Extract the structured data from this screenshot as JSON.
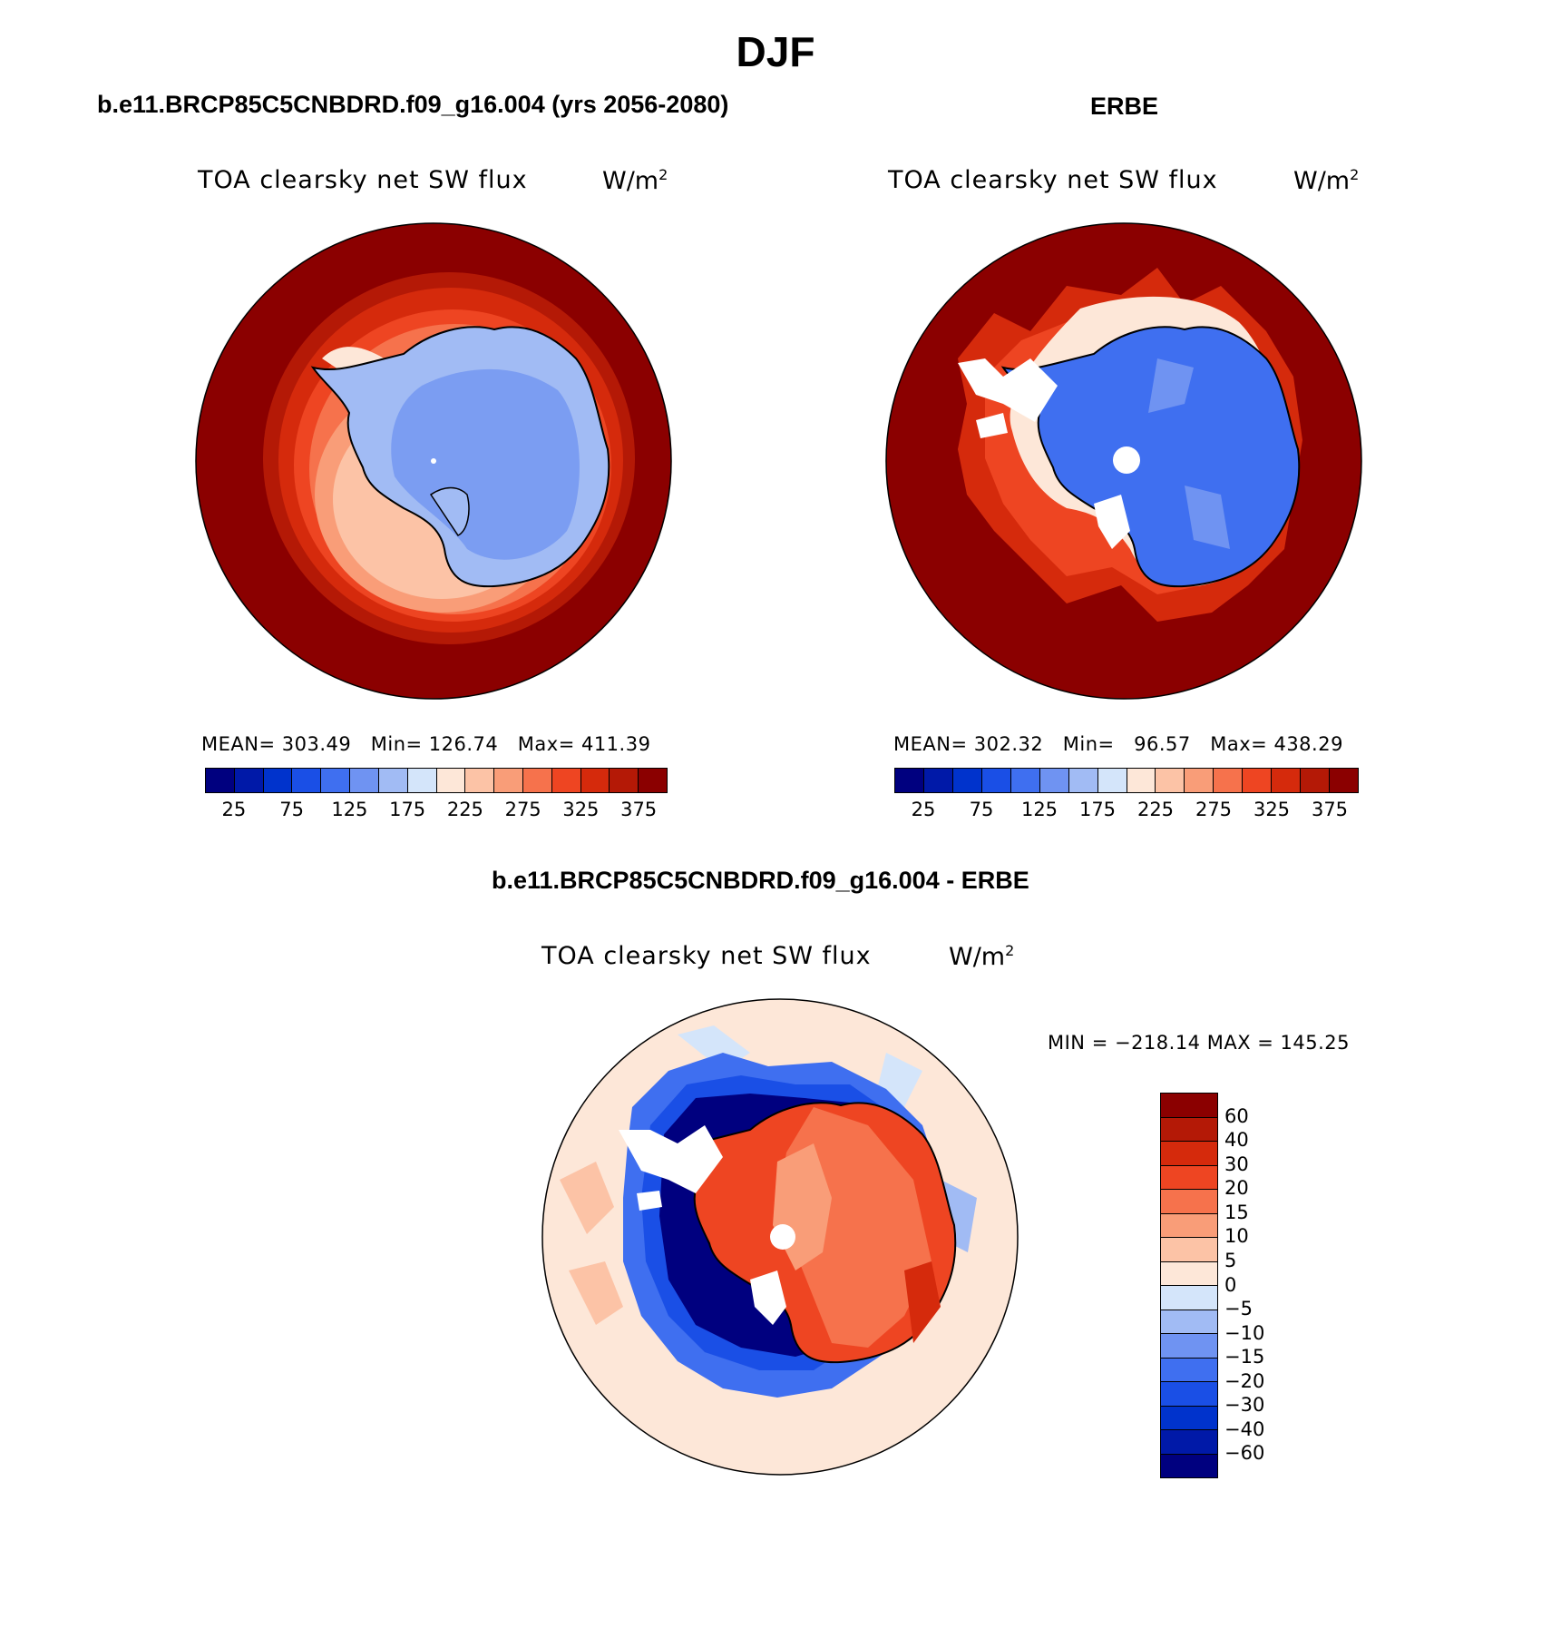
{
  "figure_title": "DJF",
  "panels": {
    "model": {
      "title": "b.e11.BRCP85C5CNBDRD.f09_g16.004 (yrs 2056-2080)",
      "variable": "TOA clearsky net SW flux",
      "units": "W/m",
      "units_sup": "2",
      "stats": "MEAN= 303.49   Min= 126.74   Max= 411.39"
    },
    "obs": {
      "title": "ERBE",
      "variable": "TOA clearsky net SW flux",
      "units": "W/m",
      "units_sup": "2",
      "stats": "MEAN= 302.32   Min=   96.57   Max= 438.29"
    },
    "diff": {
      "title": "b.e11.BRCP85C5CNBDRD.f09_g16.004 - ERBE",
      "variable": "TOA clearsky net SW flux",
      "units": "W/m",
      "units_sup": "2",
      "stats": "MIN = −218.14 MAX = 145.25"
    }
  },
  "colorbar_abs": {
    "colors": [
      "#00007f",
      "#0019a8",
      "#0033cc",
      "#1a4fe6",
      "#3f6ff0",
      "#6f93f2",
      "#a1bbf4",
      "#d4e5fa",
      "#fde7d8",
      "#fcc3a6",
      "#f99d78",
      "#f6724c",
      "#ee4522",
      "#d52a0c",
      "#b41906",
      "#8b0000"
    ],
    "labels": [
      "25",
      "75",
      "125",
      "175",
      "225",
      "275",
      "325",
      "375"
    ]
  },
  "colorbar_diff": {
    "colors": [
      "#8b0000",
      "#b41906",
      "#d52a0c",
      "#ee4522",
      "#f6724c",
      "#f99d78",
      "#fcc3a6",
      "#fde7d8",
      "#d4e5fa",
      "#a1bbf4",
      "#6f93f2",
      "#3f6ff0",
      "#1a4fe6",
      "#0033cc",
      "#0019a8",
      "#00007f"
    ],
    "labels": [
      "60",
      "40",
      "30",
      "20",
      "15",
      "10",
      "5",
      "0",
      "−5",
      "−10",
      "−15",
      "−20",
      "−30",
      "−40",
      "−60"
    ]
  }
}
